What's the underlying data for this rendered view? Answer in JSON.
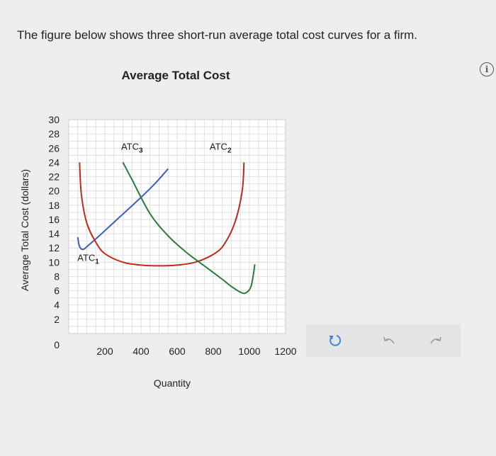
{
  "question": {
    "text": "The figure below shows three short-run average total cost curves for a firm."
  },
  "chart_data": {
    "type": "line",
    "title": "Average Total Cost",
    "xlabel": "Quantity",
    "ylabel": "Average Total Cost (dollars)",
    "xlim": [
      0,
      1200
    ],
    "ylim": [
      0,
      30
    ],
    "x_ticks": [
      {
        "v": 0,
        "label": "0"
      },
      {
        "v": 200,
        "label": "200"
      },
      {
        "v": 400,
        "label": "400"
      },
      {
        "v": 600,
        "label": "600"
      },
      {
        "v": 800,
        "label": "800"
      },
      {
        "v": 1000,
        "label": "1000"
      },
      {
        "v": 1200,
        "label": "1200"
      }
    ],
    "y_ticks": [
      "2",
      "4",
      "6",
      "8",
      "10",
      "12",
      "14",
      "16",
      "18",
      "20",
      "22",
      "24",
      "26",
      "28",
      "30"
    ],
    "grid": true,
    "series": [
      {
        "name": "ATC1",
        "label_main": "ATC",
        "label_sub": "1",
        "color": "#3b5fc0",
        "label_at": [
          48,
          10.2
        ],
        "points": [
          [
            50,
            13.5
          ],
          [
            60,
            12.2
          ],
          [
            80,
            11.8
          ],
          [
            110,
            12.4
          ],
          [
            160,
            13.5
          ],
          [
            250,
            15.6
          ],
          [
            400,
            19.1
          ],
          [
            480,
            21.1
          ],
          [
            550,
            23.1
          ]
        ]
      },
      {
        "name": "ATC2",
        "label_main": "ATC",
        "label_sub": "2",
        "color": "#c02a1c",
        "label_at": [
          780,
          25.8
        ],
        "points": [
          [
            60,
            24.0
          ],
          [
            70,
            19.5
          ],
          [
            100,
            15.5
          ],
          [
            150,
            12.8
          ],
          [
            200,
            11.2
          ],
          [
            300,
            10.0
          ],
          [
            400,
            9.6
          ],
          [
            500,
            9.5
          ],
          [
            600,
            9.6
          ],
          [
            700,
            10.0
          ],
          [
            800,
            11.1
          ],
          [
            860,
            12.5
          ],
          [
            920,
            15.6
          ],
          [
            960,
            20.0
          ],
          [
            970,
            24.0
          ]
        ]
      },
      {
        "name": "ATC3",
        "label_main": "ATC",
        "label_sub": "3",
        "color": "#2a7a3a",
        "label_at": [
          290,
          25.8
        ],
        "points": [
          [
            300,
            24.0
          ],
          [
            350,
            21.6
          ],
          [
            450,
            16.8
          ],
          [
            550,
            13.7
          ],
          [
            650,
            11.4
          ],
          [
            750,
            9.5
          ],
          [
            850,
            7.6
          ],
          [
            900,
            6.6
          ],
          [
            950,
            5.8
          ],
          [
            980,
            5.7
          ],
          [
            1010,
            6.7
          ],
          [
            1030,
            9.7
          ]
        ]
      }
    ]
  },
  "icons": {
    "info": "info-icon",
    "info_glyph": "i",
    "reset": "reset-icon",
    "undo": "undo-icon",
    "redo": "redo-icon"
  }
}
